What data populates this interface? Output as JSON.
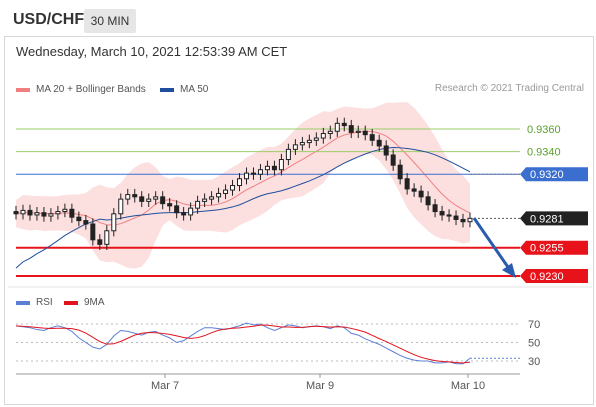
{
  "header": {
    "symbol": "USD/CHF",
    "timeframe": "30 MIN"
  },
  "chart_info": {
    "datetime": "Wednesday, March 10, 2021 12:53:39 AM CET",
    "credit": "Research © 2021 Trading Central"
  },
  "legend_top": [
    {
      "label": "MA 20 + Bollinger Bands",
      "color": "#f08080"
    },
    {
      "label": "MA 50",
      "color": "#1f4e9c"
    }
  ],
  "legend_bottom": [
    {
      "label": "RSI",
      "color": "#5b7fd6"
    },
    {
      "label": "9MA",
      "color": "#e0141e"
    }
  ],
  "colors": {
    "green_line": "#9acd6a",
    "blue_level": "#3a6fd0",
    "red_level": "#e8121a",
    "candle": "#222222"
  },
  "chart_data": {
    "type": "candlestick",
    "price_levels": [
      {
        "label": "0.9360",
        "value": 0.936,
        "kind": "resistance-green"
      },
      {
        "label": "0.9340",
        "value": 0.934,
        "kind": "resistance-green"
      },
      {
        "label": "0.9320",
        "value": 0.932,
        "kind": "pivot-blue"
      },
      {
        "label": "0.9281",
        "value": 0.9281,
        "kind": "last-price"
      },
      {
        "label": "0.9255",
        "value": 0.9255,
        "kind": "support-red"
      },
      {
        "label": "0.9230",
        "value": 0.923,
        "kind": "support-red"
      }
    ],
    "x_ticks": [
      "Mar 7",
      "Mar 9",
      "Mar 10"
    ],
    "rsi_ticks": [
      "70",
      "50",
      "30"
    ],
    "price_ylim": [
      0.92,
      0.9375
    ],
    "rsi_ylim": [
      10,
      80
    ],
    "close_series": [
      0.9285,
      0.9288,
      0.9284,
      0.9286,
      0.9283,
      0.9285,
      0.9287,
      0.9289,
      0.9282,
      0.9279,
      0.9276,
      0.9262,
      0.9258,
      0.927,
      0.9285,
      0.9298,
      0.9302,
      0.93,
      0.9296,
      0.9298,
      0.93,
      0.9294,
      0.9292,
      0.9286,
      0.9284,
      0.929,
      0.9296,
      0.9298,
      0.93,
      0.9303,
      0.9306,
      0.931,
      0.9316,
      0.9321,
      0.932,
      0.9324,
      0.9327,
      0.9324,
      0.9333,
      0.9342,
      0.9346,
      0.9348,
      0.935,
      0.9352,
      0.9356,
      0.9358,
      0.9365,
      0.9363,
      0.9357,
      0.9358,
      0.9355,
      0.935,
      0.9345,
      0.9337,
      0.9328,
      0.9316,
      0.9307,
      0.9305,
      0.93,
      0.9293,
      0.9287,
      0.9284,
      0.9283,
      0.928,
      0.9278,
      0.9281
    ],
    "rsi_series": [
      68,
      67,
      66,
      64,
      63,
      66,
      68,
      66,
      62,
      55,
      50,
      45,
      43,
      48,
      57,
      63,
      62,
      60,
      58,
      61,
      62,
      58,
      55,
      50,
      52,
      57,
      62,
      66,
      66,
      65,
      64,
      66,
      68,
      71,
      69,
      70,
      66,
      63,
      66,
      69,
      68,
      66,
      67,
      68,
      67,
      65,
      68,
      66,
      60,
      58,
      54,
      51,
      48,
      44,
      40,
      36,
      33,
      31,
      30,
      30,
      28,
      28,
      29,
      27,
      27,
      33
    ]
  }
}
